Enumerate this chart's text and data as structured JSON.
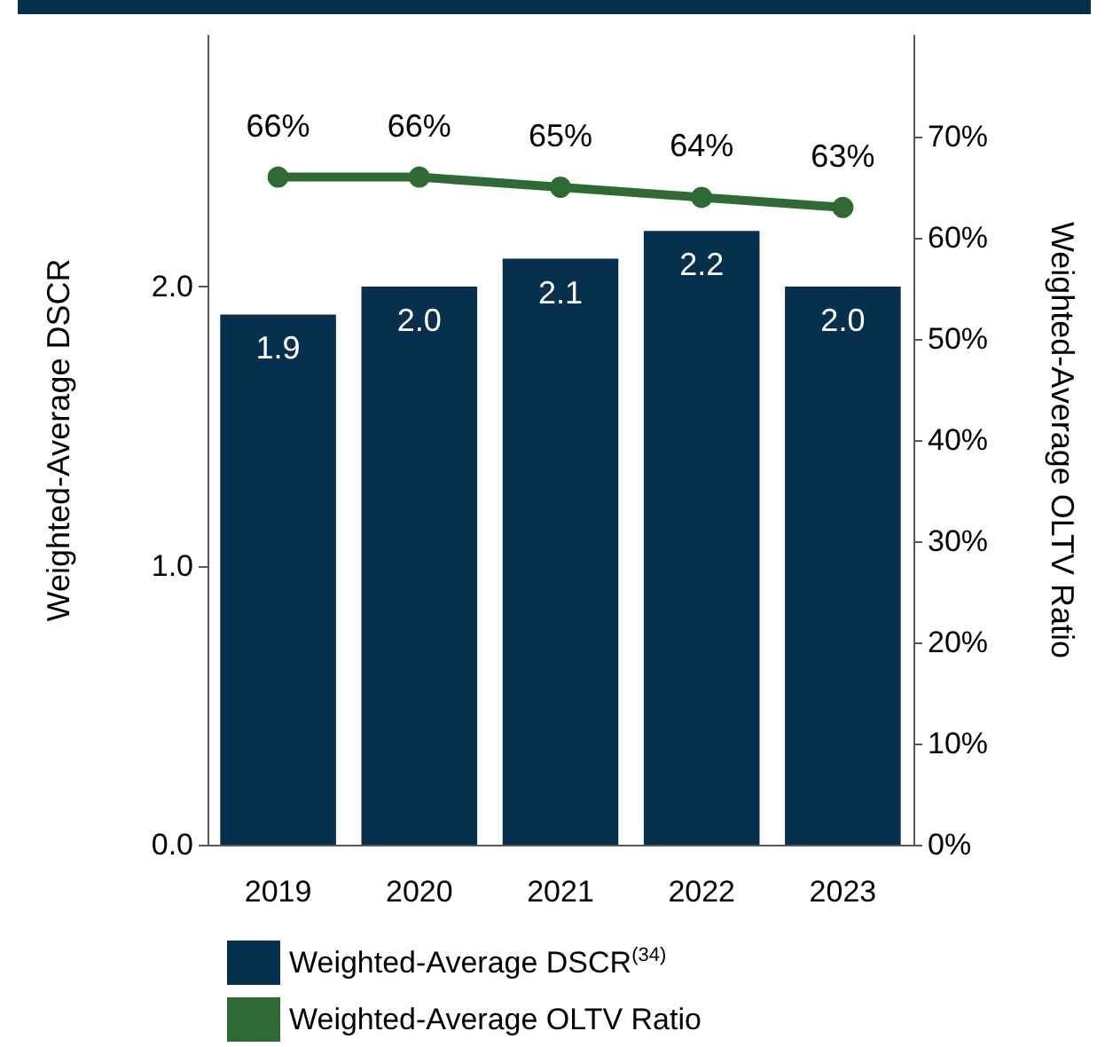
{
  "chart_data": {
    "type": "bar",
    "categories": [
      "2019",
      "2020",
      "2021",
      "2022",
      "2023"
    ],
    "ylabel": "Weighted-Average DSCR",
    "y2label": "Weighted-Average OLTV Ratio",
    "ylim": [
      0,
      2.9
    ],
    "yticks": [
      {
        "value": 0,
        "label": "0.0"
      },
      {
        "value": 1,
        "label": "1.0"
      },
      {
        "value": 2,
        "label": "2.0"
      }
    ],
    "y2lim": [
      0,
      80
    ],
    "y2ticks": [
      {
        "value": 0,
        "label": "0%"
      },
      {
        "value": 10,
        "label": "10%"
      },
      {
        "value": 20,
        "label": "20%"
      },
      {
        "value": 30,
        "label": "30%"
      },
      {
        "value": 40,
        "label": "40%"
      },
      {
        "value": 50,
        "label": "50%"
      },
      {
        "value": 60,
        "label": "60%"
      },
      {
        "value": 70,
        "label": "70%"
      }
    ],
    "series": [
      {
        "name": "Weighted-Average DSCR$^{(34)}$",
        "color": "#06304e",
        "values": [
          1.9,
          2.0,
          2.1,
          2.2,
          2.0
        ],
        "value_labels": [
          "1.9",
          "2.0",
          "2.1",
          "2.2",
          "2.0"
        ]
      },
      {
        "name": "Weighted-Average OLTV Ratio",
        "type": "line",
        "axis": "y2",
        "color": "#2e6b34",
        "marker": "circle",
        "values": [
          66,
          66,
          65,
          64,
          63
        ],
        "value_labels": [
          "66%",
          "66%",
          "65%",
          "64%",
          "63%"
        ]
      }
    ],
    "grid": false,
    "legend": "bottom"
  }
}
